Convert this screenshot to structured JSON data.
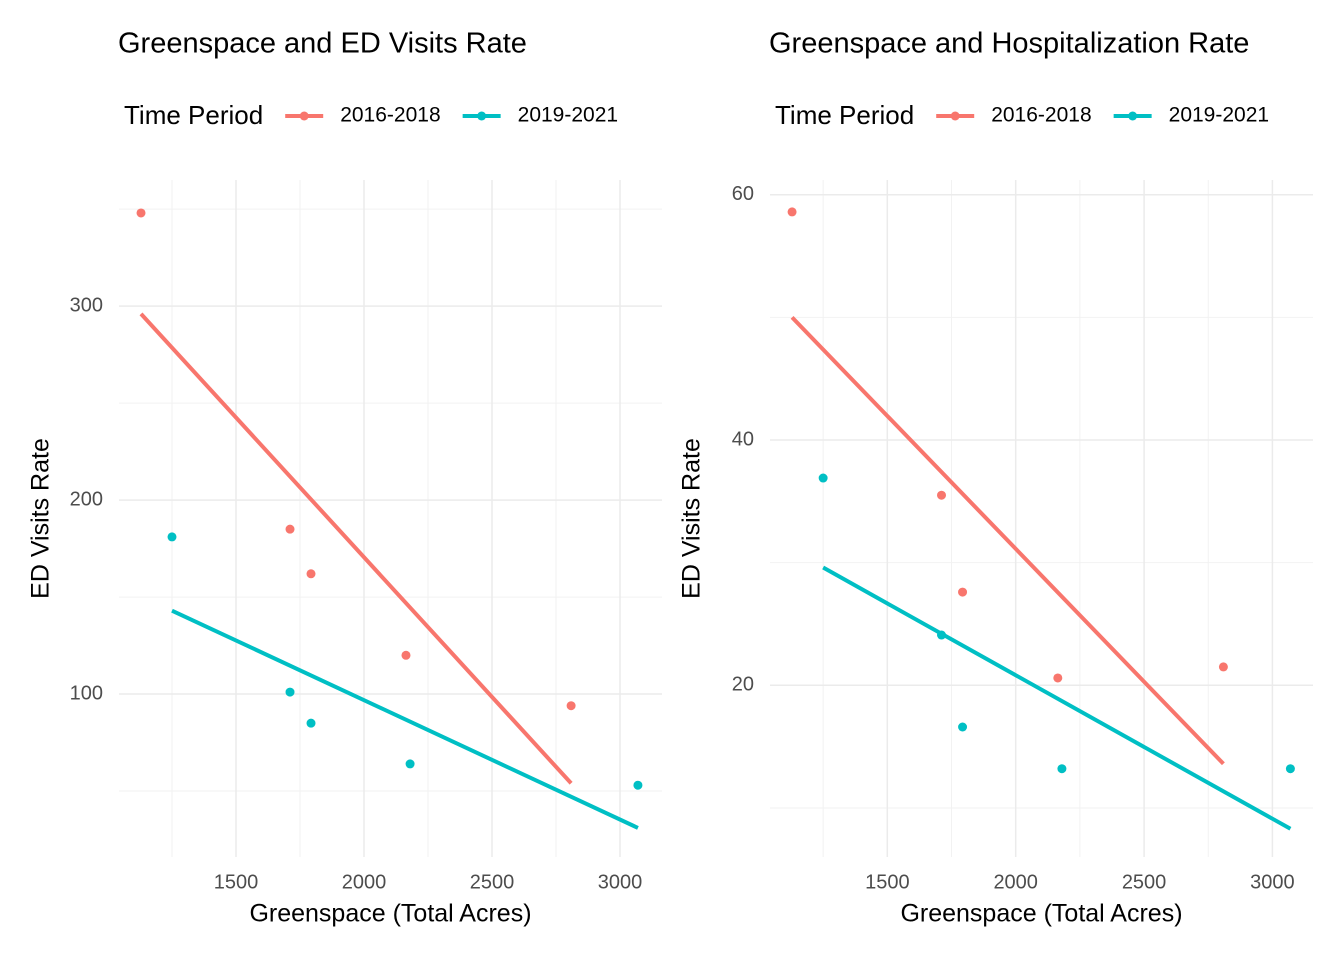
{
  "chart_data": [
    {
      "type": "scatter",
      "title": "Greenspace and ED Visits Rate",
      "legend_title": "Time Period",
      "x_label": "Greenspace (Total Acres)",
      "y_label": "ED Visits Rate",
      "xlim": [
        1043,
        3164
      ],
      "ylim": [
        16,
        365
      ],
      "xticks": [
        1500,
        2000,
        2500,
        3000
      ],
      "yticks": [
        100,
        200,
        300
      ],
      "x_minor_grid": [
        1250,
        1750,
        2250,
        2750
      ],
      "y_minor_grid": [
        50,
        150,
        250,
        350
      ],
      "grid": true,
      "legend": "top",
      "series": [
        {
          "name": "2016-2018",
          "color": "#F8766D",
          "x": [
            1129,
            1711,
            1793,
            2164,
            2809
          ],
          "values": [
            348,
            185,
            162,
            120,
            94
          ],
          "fit_x": [
            1129,
            2809
          ],
          "fit_values": [
            296,
            54
          ]
        },
        {
          "name": "2019-2021",
          "color": "#00BFC4",
          "x": [
            1250,
            1711,
            1793,
            2180,
            3070
          ],
          "values": [
            181,
            101,
            85,
            64,
            53
          ],
          "fit_x": [
            1250,
            3070
          ],
          "fit_values": [
            143,
            31
          ]
        }
      ]
    },
    {
      "type": "scatter",
      "title": "Greenspace and Hospitalization Rate",
      "legend_title": "Time Period",
      "x_label": "Greenspace (Total Acres)",
      "y_label": "ED Visits Rate",
      "xlim": [
        1043,
        3158
      ],
      "ylim": [
        6,
        61.2
      ],
      "xticks": [
        1500,
        2000,
        2500,
        3000
      ],
      "yticks": [
        20,
        40,
        60
      ],
      "x_minor_grid": [
        1250,
        1750,
        2250,
        2750
      ],
      "y_minor_grid": [
        10,
        30,
        50
      ],
      "grid": true,
      "legend": "top",
      "series": [
        {
          "name": "2016-2018",
          "color": "#F8766D",
          "x": [
            1129,
            1711,
            1793,
            2164,
            2809
          ],
          "values": [
            58.6,
            35.5,
            27.6,
            20.6,
            21.5
          ],
          "fit_x": [
            1129,
            2809
          ],
          "fit_values": [
            50.0,
            13.6
          ]
        },
        {
          "name": "2019-2021",
          "color": "#00BFC4",
          "x": [
            1250,
            1711,
            1793,
            2180,
            3070
          ],
          "values": [
            36.9,
            24.1,
            16.6,
            13.2,
            13.2
          ],
          "fit_x": [
            1250,
            3070
          ],
          "fit_values": [
            29.6,
            8.3
          ]
        }
      ]
    }
  ]
}
